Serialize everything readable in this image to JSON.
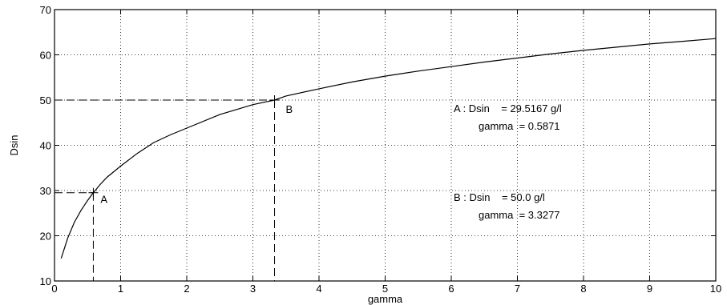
{
  "chart_data": {
    "type": "line",
    "xlabel": "gamma",
    "ylabel": "Dsin",
    "xlim": [
      0,
      10
    ],
    "ylim": [
      10,
      70
    ],
    "xticks": [
      0,
      1,
      2,
      3,
      4,
      5,
      6,
      7,
      8,
      9,
      10
    ],
    "yticks": [
      10,
      20,
      30,
      40,
      50,
      60,
      70
    ],
    "grid": true,
    "series": [
      {
        "x": [
          0.1,
          0.2,
          0.3,
          0.4,
          0.5,
          0.5871,
          0.7,
          0.8,
          1.0,
          1.25,
          1.5,
          1.75,
          2.0,
          2.5,
          3.0,
          3.3277,
          3.5,
          4.0,
          4.5,
          5.0,
          5.5,
          6.0,
          6.5,
          7.0,
          7.5,
          8.0,
          8.5,
          9.0,
          9.5,
          10.0
        ],
        "y": [
          15.0,
          19.5,
          23.0,
          25.6,
          27.8,
          29.5,
          31.5,
          33.0,
          35.4,
          38.2,
          40.6,
          42.3,
          43.8,
          46.8,
          49.0,
          50.0,
          50.9,
          52.5,
          54.0,
          55.3,
          56.4,
          57.4,
          58.4,
          59.3,
          60.2,
          61.0,
          61.7,
          62.4,
          63.0,
          63.6
        ]
      }
    ],
    "points": [
      {
        "label": "A",
        "x": 0.5871,
        "y": 29.5167,
        "line1": "A : Dsin    = 29.5167 g/l",
        "line2": "gamma  = 0.5871"
      },
      {
        "label": "B",
        "x": 3.3277,
        "y": 50.0,
        "line1": "B : Dsin    = 50.0 g/l",
        "line2": "gamma  = 3.3277"
      }
    ]
  }
}
